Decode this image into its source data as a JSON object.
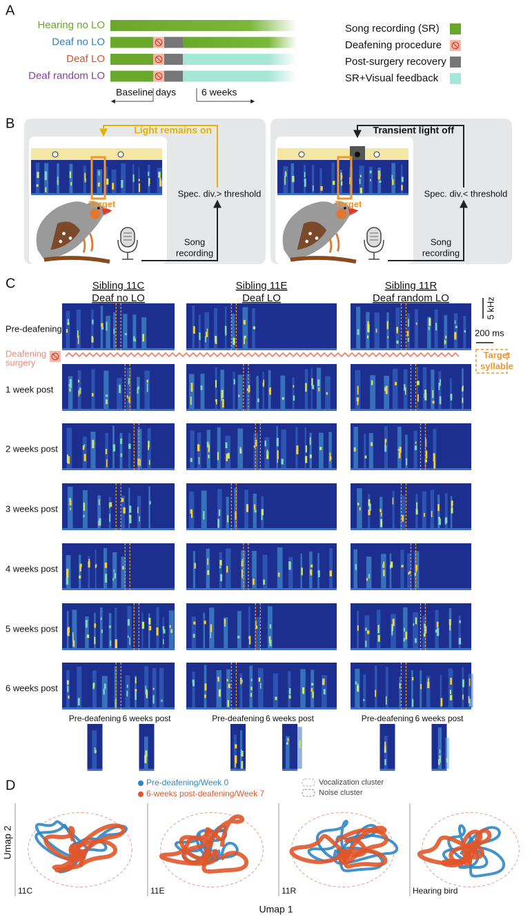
{
  "panel_a": {
    "label": "A",
    "groups": [
      {
        "name": "Hearing no LO",
        "color": "#6aa82c"
      },
      {
        "name": "Deaf no LO",
        "color": "#2f7fc0"
      },
      {
        "name": "Deaf LO",
        "color": "#e0522a"
      },
      {
        "name": "Deaf random LO",
        "color": "#8a3c9e"
      }
    ],
    "legend": [
      "Song recording (SR)",
      "Deafening procedure",
      "Post-surgery recovery",
      "SR+Visual feedback"
    ],
    "baseline": "Baseline days",
    "duration": "6 weeks"
  },
  "panel_b": {
    "label": "B",
    "left": {
      "light": "Light remains on",
      "target": "Target",
      "condition": "Spec. div.> threshold",
      "recording": [
        "Song",
        "recording"
      ]
    },
    "right": {
      "light": "Transient light off",
      "target": "Target",
      "condition": "Spec. div.< threshold",
      "recording": [
        "Song",
        "recording"
      ]
    }
  },
  "panel_c": {
    "label": "C",
    "columns": [
      {
        "sibling": "Sibling 11C",
        "condition": "Deaf no LO"
      },
      {
        "sibling": "Sibling 11E",
        "condition": "Deaf LO"
      },
      {
        "sibling": "Sibling 11R",
        "condition": "Deaf random LO"
      }
    ],
    "rows": [
      "Pre-deafening",
      "1 week post",
      "2 weeks post",
      "3 weeks post",
      "4 weeks post",
      "5 weeks post",
      "6 weeks post"
    ],
    "surgery": [
      "Deafening",
      "surgery"
    ],
    "freq_scale": "5 kHz",
    "time_scale": "200 ms",
    "target": [
      "Target",
      "syllable"
    ],
    "snippets": [
      "Pre-deafening",
      "6 weeks post"
    ]
  },
  "panel_d": {
    "label": "D",
    "legend": [
      "Pre-deafening/Week 0",
      "6-weeks post-deafening/Week 7"
    ],
    "clusters": [
      "Vocalization cluster",
      "Noise cluster"
    ],
    "panels": [
      "11C",
      "11E",
      "11R",
      "Hearing bird"
    ],
    "y_label": "Umap 2",
    "x_label": "Umap 1"
  }
}
